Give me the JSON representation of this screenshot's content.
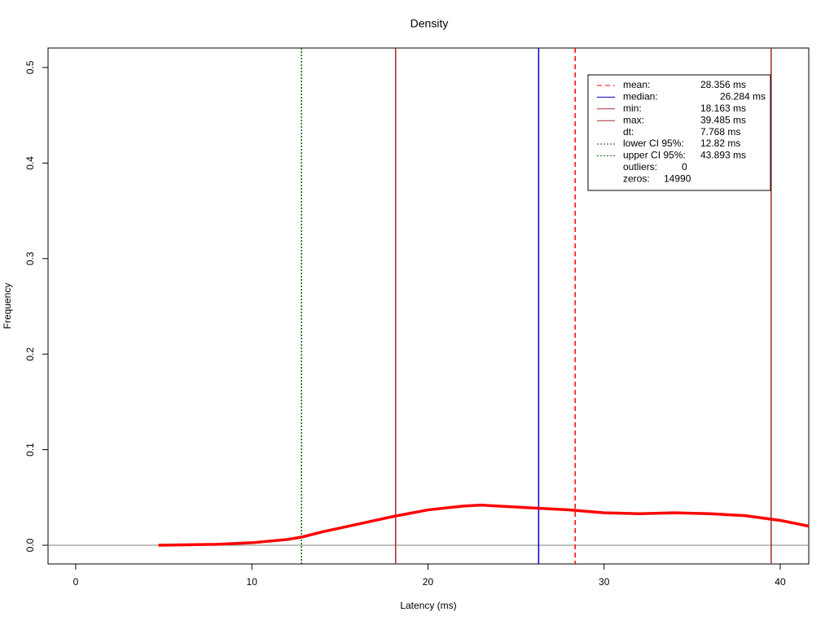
{
  "chart_data": {
    "type": "line",
    "title": "Density",
    "x_label": "Latency (ms)",
    "y_label": "Frequency",
    "xlim": [
      -1.57,
      41.62
    ],
    "ylim": [
      -0.0196,
      0.5204
    ],
    "xticks": [
      0,
      10,
      20,
      30,
      40
    ],
    "yticks": [
      {
        "value": 0,
        "label": "0.0"
      },
      {
        "value": 0.1,
        "label": "0.1"
      },
      {
        "value": 0.2,
        "label": "0.2"
      },
      {
        "value": 0.3,
        "label": "0.3"
      },
      {
        "value": 0.4,
        "label": "0.4"
      },
      {
        "value": 0.5,
        "label": "0.5"
      }
    ],
    "x": [
      4.7,
      8,
      10,
      12,
      12.82,
      14,
      16,
      18,
      20,
      22,
      23,
      24,
      26,
      28,
      30,
      32,
      34,
      36,
      38,
      40,
      41.62
    ],
    "series": [
      {
        "color": "#ff0000",
        "values": [
          0,
          0.001,
          0.0026,
          0.006,
          0.0085,
          0.014,
          0.022,
          0.03,
          0.037,
          0.041,
          0.042,
          0.041,
          0.039,
          0.037,
          0.034,
          0.033,
          0.034,
          0.033,
          0.031,
          0.026,
          0.02
        ]
      }
    ],
    "legend": [
      {
        "label": "mean:",
        "value": 28.356,
        "value_label": "28.356 ms",
        "color": "#ff0000",
        "dash": "dashed"
      },
      {
        "label": "median:",
        "value": 26.284,
        "value_label": "26.284 ms",
        "color": "#0000cd",
        "dash": "solid"
      },
      {
        "label": "min:",
        "value": 18.163,
        "value_label": "18.163 ms",
        "color": "#a52a2a",
        "dash": "solid"
      },
      {
        "label": "max:",
        "value": 39.485,
        "value_label": "39.485 ms",
        "color": "#a52a2a",
        "dash": "solid"
      },
      {
        "label": "dt:",
        "text": "7.768 ms"
      },
      {
        "label": "lower CI 95%:",
        "value": 12.82,
        "value_label": "12.82 ms",
        "color": "#006400",
        "dash": "dotted"
      },
      {
        "label": "upper CI 95%:",
        "value": 43.893,
        "value_label": "43.893 ms",
        "color": "#006400",
        "dash": "dotted"
      },
      {
        "label": "outliers:",
        "text": "0"
      },
      {
        "label": "zeros:",
        "text": "14990"
      }
    ]
  }
}
